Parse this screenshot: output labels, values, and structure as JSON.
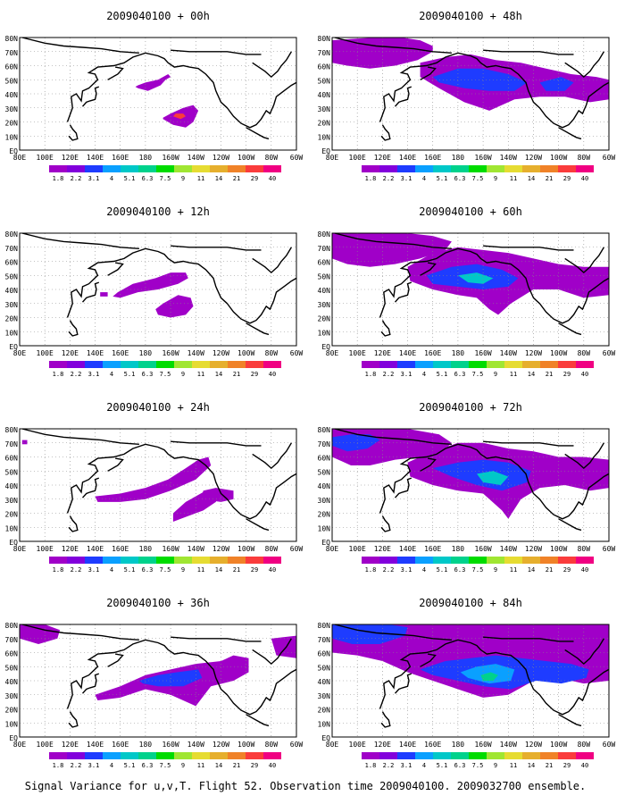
{
  "figure": {
    "caption": "Signal Variance for u,v,T. Flight 52. Observation time 2009040100. 2009032700 ensemble."
  },
  "common": {
    "lon_labels": [
      "80E",
      "100E",
      "120E",
      "140E",
      "160E",
      "180",
      "160W",
      "140W",
      "120W",
      "100W",
      "80W",
      "60W"
    ],
    "lat_labels": [
      "EQ",
      "10N",
      "20N",
      "30N",
      "40N",
      "50N",
      "60N",
      "70N",
      "80N"
    ],
    "colorbar": {
      "labels": [
        "1.8",
        "2.2",
        "3.1",
        "4",
        "5.1",
        "6.3",
        "7.5",
        "9",
        "11",
        "14",
        "21",
        "29",
        "40"
      ],
      "colors": [
        "#a000c8",
        "#8200dc",
        "#1e3cff",
        "#0aa0ff",
        "#00c8c8",
        "#00d28c",
        "#00dc00",
        "#a0e632",
        "#e6dc32",
        "#e6af2d",
        "#f08228",
        "#fa3c3c",
        "#f00082"
      ]
    }
  },
  "chart_data": [
    {
      "type": "heatmap",
      "title": "2009040100 + 00h",
      "forecast_hour": 0,
      "lon_range": [
        80,
        300
      ],
      "lat_range": [
        0,
        80
      ],
      "regions": [
        {
          "level": 0,
          "lon": [
            174,
            182,
            192,
            196,
            200,
            198,
            190,
            180,
            174,
            172
          ],
          "lat": [
            44,
            42,
            46,
            50,
            52,
            54,
            50,
            48,
            46,
            45
          ]
        },
        {
          "level": 0,
          "lon": [
            194,
            202,
            212,
            218,
            222,
            218,
            210,
            200,
            194
          ],
          "lat": [
            22,
            18,
            16,
            20,
            28,
            32,
            30,
            26,
            23
          ]
        },
        {
          "level": 11,
          "lon": [
            202,
            208,
            212,
            210,
            204
          ],
          "lat": [
            24,
            22,
            24,
            26,
            26
          ]
        }
      ]
    },
    {
      "type": "heatmap",
      "title": "2009040100 + 48h",
      "forecast_hour": 48,
      "lon_range": [
        80,
        300
      ],
      "lat_range": [
        0,
        80
      ],
      "regions": [
        {
          "level": 0,
          "lon": [
            80,
            95,
            115,
            135,
            150,
            160,
            160,
            148,
            130,
            110,
            92,
            80
          ],
          "lat": [
            78,
            79,
            80,
            80,
            78,
            74,
            70,
            64,
            60,
            58,
            60,
            62
          ]
        },
        {
          "level": 0,
          "lon": [
            150,
            170,
            190,
            210,
            230,
            250,
            270,
            290,
            300,
            300,
            285,
            265,
            245,
            225,
            205,
            185,
            165,
            150
          ],
          "lat": [
            62,
            66,
            68,
            64,
            62,
            58,
            54,
            52,
            50,
            36,
            34,
            38,
            38,
            36,
            28,
            34,
            44,
            52
          ]
        },
        {
          "level": 2,
          "lon": [
            160,
            180,
            200,
            220,
            235,
            225,
            205,
            185,
            165
          ],
          "lat": [
            52,
            58,
            58,
            54,
            48,
            42,
            42,
            44,
            48
          ]
        },
        {
          "level": 2,
          "lon": [
            245,
            262,
            272,
            265,
            250
          ],
          "lat": [
            48,
            52,
            48,
            42,
            42
          ]
        }
      ]
    },
    {
      "type": "heatmap",
      "title": "2009040100 + 12h",
      "forecast_hour": 12,
      "lon_range": [
        80,
        300
      ],
      "lat_range": [
        0,
        80
      ],
      "regions": [
        {
          "level": 0,
          "lon": [
            158,
            170,
            188,
            200,
            212,
            214,
            206,
            190,
            174,
            160,
            154
          ],
          "lat": [
            38,
            44,
            48,
            52,
            52,
            48,
            44,
            40,
            38,
            34,
            35
          ]
        },
        {
          "level": 0,
          "lon": [
            190,
            200,
            212,
            218,
            216,
            206,
            194,
            188
          ],
          "lat": [
            22,
            20,
            22,
            28,
            34,
            36,
            30,
            26
          ]
        },
        {
          "level": 0,
          "lon": [
            144,
            150,
            150,
            144
          ],
          "lat": [
            38,
            38,
            35,
            35
          ]
        }
      ]
    },
    {
      "type": "heatmap",
      "title": "2009040100 + 60h",
      "forecast_hour": 60,
      "lon_range": [
        80,
        300
      ],
      "lat_range": [
        0,
        80
      ],
      "regions": [
        {
          "level": 0,
          "lon": [
            80,
            100,
            120,
            140,
            160,
            175,
            170,
            150,
            130,
            110,
            92,
            80
          ],
          "lat": [
            80,
            80,
            80,
            80,
            78,
            74,
            68,
            62,
            58,
            56,
            58,
            62
          ]
        },
        {
          "level": 0,
          "lon": [
            140,
            160,
            180,
            200,
            220,
            240,
            260,
            280,
            300,
            300,
            280,
            260,
            240,
            222,
            212,
            205,
            195,
            180,
            160,
            142
          ],
          "lat": [
            56,
            66,
            70,
            68,
            66,
            62,
            58,
            56,
            56,
            36,
            34,
            40,
            40,
            30,
            22,
            26,
            34,
            36,
            40,
            46
          ]
        },
        {
          "level": 2,
          "lon": [
            155,
            175,
            195,
            215,
            228,
            220,
            200,
            180,
            160
          ],
          "lat": [
            50,
            56,
            58,
            54,
            48,
            42,
            40,
            42,
            44
          ]
        },
        {
          "level": 4,
          "lon": [
            180,
            195,
            208,
            200,
            188
          ],
          "lat": [
            50,
            52,
            48,
            44,
            45
          ]
        }
      ]
    },
    {
      "type": "heatmap",
      "title": "2009040100 + 24h",
      "forecast_hour": 24,
      "lon_range": [
        80,
        300
      ],
      "lat_range": [
        0,
        80
      ],
      "regions": [
        {
          "level": 0,
          "lon": [
            140,
            160,
            180,
            198,
            212,
            222,
            230,
            232,
            220,
            200,
            180,
            160,
            142
          ],
          "lat": [
            32,
            34,
            38,
            44,
            52,
            58,
            60,
            54,
            44,
            36,
            30,
            28,
            28
          ]
        },
        {
          "level": 0,
          "lon": [
            202,
            214,
            226,
            236,
            238,
            228,
            212,
            202
          ],
          "lat": [
            14,
            18,
            22,
            28,
            34,
            36,
            28,
            20
          ]
        },
        {
          "level": 0,
          "lon": [
            224,
            240,
            250,
            250,
            236,
            226
          ],
          "lat": [
            30,
            28,
            30,
            36,
            38,
            36
          ]
        },
        {
          "level": 0,
          "lon": [
            82,
            86,
            86,
            82
          ],
          "lat": [
            72,
            72,
            69,
            69
          ]
        }
      ]
    },
    {
      "type": "heatmap",
      "title": "2009040100 + 72h",
      "forecast_hour": 72,
      "lon_range": [
        80,
        300
      ],
      "lat_range": [
        0,
        80
      ],
      "regions": [
        {
          "level": 0,
          "lon": [
            80,
            110,
            140,
            165,
            175,
            168,
            150,
            130,
            110,
            95,
            80
          ],
          "lat": [
            80,
            80,
            80,
            76,
            70,
            64,
            60,
            58,
            54,
            54,
            60
          ]
        },
        {
          "level": 0,
          "lon": [
            140,
            160,
            180,
            200,
            220,
            240,
            260,
            280,
            300,
            300,
            285,
            265,
            245,
            230,
            220,
            215,
            200,
            180,
            160,
            142
          ],
          "lat": [
            56,
            64,
            70,
            70,
            66,
            64,
            60,
            60,
            58,
            38,
            36,
            40,
            38,
            30,
            16,
            22,
            34,
            36,
            40,
            46
          ]
        },
        {
          "level": 2,
          "lon": [
            80,
            95,
            110,
            118,
            108,
            92,
            80
          ],
          "lat": [
            74,
            76,
            76,
            72,
            66,
            64,
            68
          ]
        },
        {
          "level": 2,
          "lon": [
            160,
            180,
            200,
            220,
            238,
            235,
            215,
            195,
            175
          ],
          "lat": [
            52,
            56,
            58,
            56,
            50,
            42,
            36,
            40,
            46
          ]
        },
        {
          "level": 4,
          "lon": [
            195,
            208,
            220,
            214,
            200
          ],
          "lat": [
            48,
            50,
            46,
            40,
            42
          ]
        }
      ]
    },
    {
      "type": "heatmap",
      "title": "2009040100 + 36h",
      "forecast_hour": 36,
      "lon_range": [
        80,
        300
      ],
      "lat_range": [
        0,
        80
      ],
      "regions": [
        {
          "level": 0,
          "lon": [
            80,
            100,
            112,
            110,
            95,
            80
          ],
          "lat": [
            80,
            80,
            76,
            70,
            66,
            70
          ]
        },
        {
          "level": 0,
          "lon": [
            140,
            160,
            180,
            200,
            220,
            240,
            250,
            262,
            262,
            250,
            232,
            220,
            200,
            180,
            160,
            142
          ],
          "lat": [
            30,
            36,
            44,
            48,
            52,
            54,
            58,
            56,
            46,
            40,
            36,
            22,
            30,
            34,
            28,
            26
          ]
        },
        {
          "level": 0,
          "lon": [
            280,
            300,
            300,
            284
          ],
          "lat": [
            70,
            72,
            56,
            58
          ]
        },
        {
          "level": 2,
          "lon": [
            175,
            190,
            205,
            222,
            225,
            210,
            190,
            178
          ],
          "lat": [
            40,
            44,
            46,
            48,
            42,
            36,
            36,
            38
          ]
        }
      ]
    },
    {
      "type": "heatmap",
      "title": "2009040100 + 84h",
      "forecast_hour": 84,
      "lon_range": [
        80,
        300
      ],
      "lat_range": [
        0,
        80
      ],
      "regions": [
        {
          "level": 0,
          "lon": [
            80,
            110,
            140,
            170,
            200,
            230,
            260,
            290,
            300,
            300,
            280,
            260,
            240,
            220,
            200,
            180,
            160,
            140,
            120,
            100,
            80
          ],
          "lat": [
            80,
            80,
            80,
            80,
            80,
            80,
            80,
            80,
            80,
            40,
            38,
            42,
            40,
            30,
            28,
            34,
            40,
            46,
            54,
            58,
            60
          ]
        },
        {
          "level": 2,
          "lon": [
            80,
            100,
            125,
            140,
            138,
            118,
            96,
            80
          ],
          "lat": [
            80,
            80,
            80,
            78,
            72,
            66,
            66,
            70
          ]
        },
        {
          "level": 2,
          "lon": [
            150,
            170,
            190,
            210,
            230,
            250,
            270,
            284,
            282,
            262,
            242,
            222,
            200,
            180,
            160
          ],
          "lat": [
            48,
            54,
            56,
            58,
            56,
            54,
            52,
            48,
            42,
            38,
            40,
            34,
            36,
            40,
            44
          ]
        },
        {
          "level": 3,
          "lon": [
            182,
            195,
            210,
            225,
            222,
            205,
            188
          ],
          "lat": [
            46,
            50,
            52,
            48,
            40,
            38,
            42
          ]
        },
        {
          "level": 5,
          "lon": [
            198,
            206,
            212,
            208,
            200
          ],
          "lat": [
            44,
            46,
            44,
            40,
            40
          ]
        }
      ]
    }
  ]
}
